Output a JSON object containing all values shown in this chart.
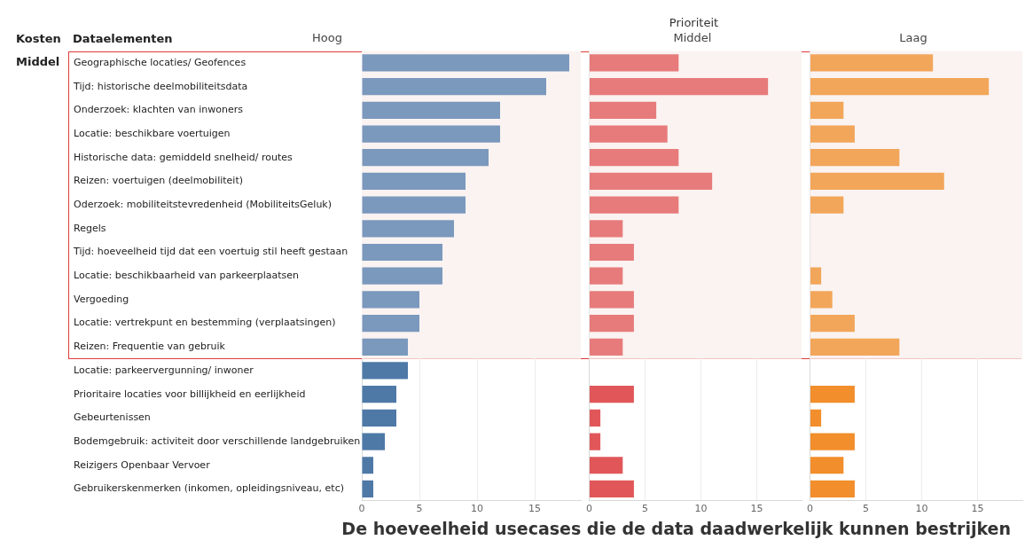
{
  "chart_data": [
    {
      "type": "bar",
      "orientation": "horizontal",
      "title": "Hoog",
      "ylabel": "Dataelementen",
      "annotations": [
        "Kosten",
        "Middel",
        "Prioriteit",
        "De hoeveelheid usecases die de data daadwerkelijk kunnen bestrijken"
      ],
      "categories": [
        "Geographische locaties/ Geofences",
        "Tijd: historische deelmobiliteitsdata",
        "Onderzoek: klachten van inwoners",
        "Locatie: beschikbare voertuigen",
        "Historische data: gemiddeld snelheid/ routes",
        "Reizen: voertuigen (deelmobiliteit)",
        "Oderzoek: mobiliteitstevredenheid (MobiliteitsGeluk)",
        "Regels",
        "Tijd: hoeveelheid tijd dat een voertuig stil heeft gestaan",
        "Locatie: beschikbaarheid van parkeerplaatsen",
        "Vergoeding",
        "Locatie: vertrekpunt en bestemming (verplaatsingen)",
        "Reizen: Frequentie van gebruik",
        "Locatie: parkeervergunning/ inwoner",
        "Prioritaire locaties voor billijkheid en eerlijkheid",
        "Gebeurtenissen",
        "Bodemgebruik: activiteit door verschillende landgebruiken",
        "Reizigers Openbaar Vervoer",
        "Gebruikerskenmerken (inkomen, opleidingsniveau, etc)"
      ],
      "values": [
        18,
        16,
        12,
        12,
        11,
        9,
        9,
        8,
        7,
        7,
        5,
        5,
        4,
        4,
        3,
        3,
        2,
        1,
        1
      ],
      "colors": [
        "#7b98bd",
        "#7b98bd",
        "#7b98bd",
        "#7b98bd",
        "#7b98bd",
        "#7b98bd",
        "#7b98bd",
        "#7b98bd",
        "#7b98bd",
        "#7b98bd",
        "#7b98bd",
        "#7b98bd",
        "#7b98bd",
        "#4e79a7",
        "#4e79a7",
        "#4e79a7",
        "#4e79a7",
        "#4e79a7",
        "#4e79a7"
      ],
      "xlim": [
        0,
        19
      ],
      "xticks": [
        0,
        5,
        10,
        15
      ],
      "grid": "x",
      "bands": [
        {
          "axis": "y",
          "from": "Geographische locaties/ Geofences",
          "to": "Reizen: Frequentie van gebruik",
          "color": "#faf3f1"
        }
      ]
    },
    {
      "type": "bar",
      "orientation": "horizontal",
      "title": "Middel",
      "tick_labels": "x",
      "categories": [
        "Geographische locaties/ Geofences",
        "Tijd: historische deelmobiliteitsdata",
        "Onderzoek: klachten van inwoners",
        "Locatie: beschikbare voertuigen",
        "Historische data: gemiddeld snelheid/ routes",
        "Reizen: voertuigen (deelmobiliteit)",
        "Oderzoek: mobiliteitstevredenheid (MobiliteitsGeluk)",
        "Regels",
        "Tijd: hoeveelheid tijd dat een voertuig stil heeft gestaan",
        "Locatie: beschikbaarheid van parkeerplaatsen",
        "Vergoeding",
        "Locatie: vertrekpunt en bestemming (verplaatsingen)",
        "Reizen: Frequentie van gebruik",
        "Locatie: parkeervergunning/ inwoner",
        "Prioritaire locaties voor billijkheid en eerlijkheid",
        "Gebeurtenissen",
        "Bodemgebruik: activiteit door verschillende landgebruiken",
        "Reizigers Openbaar Vervoer",
        "Gebruikerskenmerken (inkomen, opleidingsniveau, etc)"
      ],
      "values": [
        8,
        16,
        6,
        7,
        8,
        11,
        8,
        3,
        4,
        3,
        4,
        4,
        3,
        null,
        4,
        1,
        1,
        3,
        4
      ],
      "colors": [
        "#e77b7b",
        "#e77b7b",
        "#e77b7b",
        "#e77b7b",
        "#e77b7b",
        "#e77b7b",
        "#e77b7b",
        "#e77b7b",
        "#e77b7b",
        "#e77b7b",
        "#e77b7b",
        "#e77b7b",
        "#e77b7b",
        "#e15759",
        "#e15759",
        "#e15759",
        "#e15759",
        "#e15759",
        "#e15759"
      ],
      "xlim": [
        0,
        19
      ],
      "xticks": [
        0,
        5,
        10,
        15
      ],
      "grid": "x",
      "bands": [
        {
          "axis": "y",
          "from": "Geographische locaties/ Geofences",
          "to": "Reizen: Frequentie van gebruik",
          "color": "#faf3f1"
        }
      ]
    },
    {
      "type": "bar",
      "orientation": "horizontal",
      "title": "Laag",
      "tick_labels": "x",
      "categories": [
        "Geographische locaties/ Geofences",
        "Tijd: historische deelmobiliteitsdata",
        "Onderzoek: klachten van inwoners",
        "Locatie: beschikbare voertuigen",
        "Historische data: gemiddeld snelheid/ routes",
        "Reizen: voertuigen (deelmobiliteit)",
        "Oderzoek: mobiliteitstevredenheid (MobiliteitsGeluk)",
        "Regels",
        "Tijd: hoeveelheid tijd dat een voertuig stil heeft gestaan",
        "Locatie: beschikbaarheid van parkeerplaatsen",
        "Vergoeding",
        "Locatie: vertrekpunt en bestemming (verplaatsingen)",
        "Reizen: Frequentie van gebruik",
        "Locatie: parkeervergunning/ inwoner",
        "Prioritaire locaties voor billijkheid en eerlijkheid",
        "Gebeurtenissen",
        "Bodemgebruik: activiteit door verschillende landgebruiken",
        "Reizigers Openbaar Vervoer",
        "Gebruikerskenmerken (inkomen, opleidingsniveau, etc)"
      ],
      "values": [
        11,
        16,
        3,
        4,
        8,
        12,
        3,
        null,
        null,
        1,
        2,
        4,
        8,
        null,
        4,
        1,
        4,
        3,
        4
      ],
      "colors": [
        "#f2a65a",
        "#f2a65a",
        "#f2a65a",
        "#f2a65a",
        "#f2a65a",
        "#f2a65a",
        "#f2a65a",
        "#f2a65a",
        "#f2a65a",
        "#f2a65a",
        "#f2a65a",
        "#f2a65a",
        "#f2a65a",
        "#f28e2b",
        "#f28e2b",
        "#f28e2b",
        "#f28e2b",
        "#f28e2b",
        "#f28e2b"
      ],
      "xlim": [
        0,
        19
      ],
      "xticks": [
        0,
        5,
        10,
        15
      ],
      "grid": "x",
      "bands": [
        {
          "axis": "y",
          "from": "Geographische locaties/ Geofences",
          "to": "Reizen: Frequentie van gebruik",
          "color": "#faf3f1"
        }
      ]
    }
  ]
}
